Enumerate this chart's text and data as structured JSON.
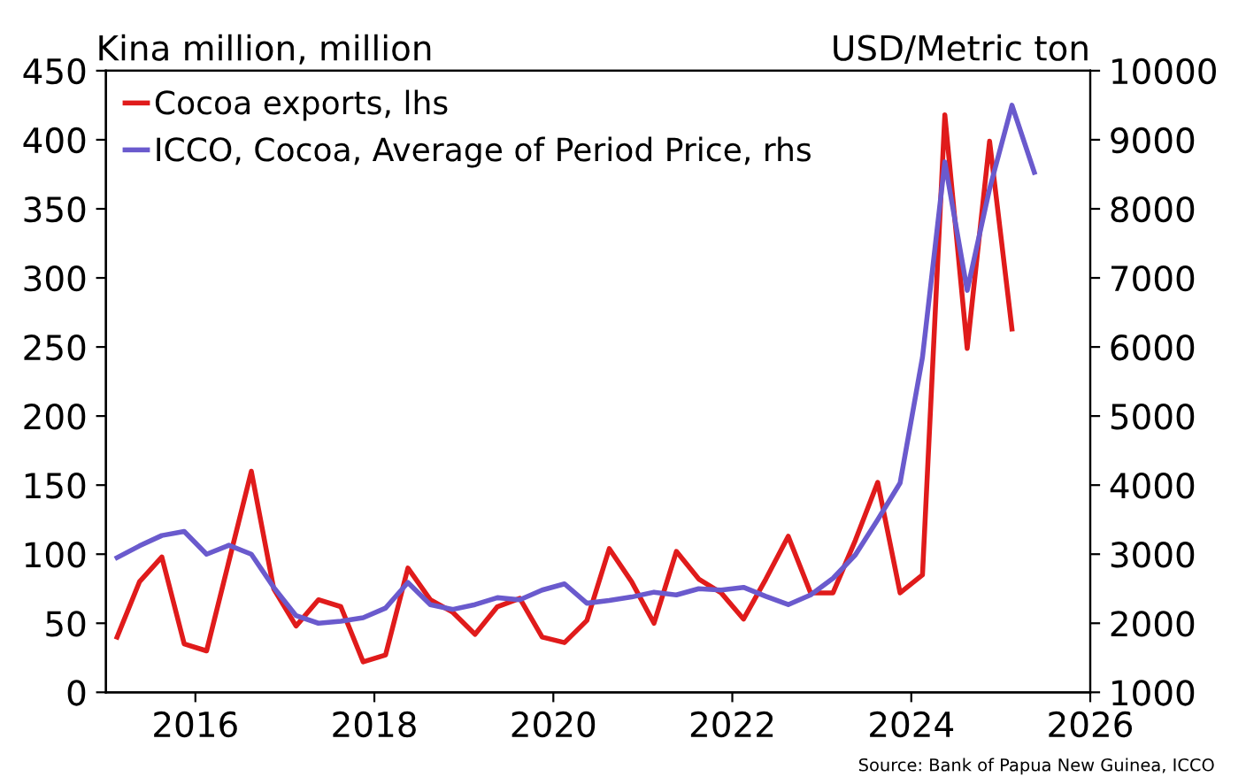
{
  "chart_data": {
    "type": "line",
    "ylabel": "Kina million, million",
    "y2label": "USD/Metric ton",
    "x": [
      2015.125,
      2015.375,
      2015.625,
      2015.875,
      2016.125,
      2016.375,
      2016.625,
      2016.875,
      2017.125,
      2017.375,
      2017.625,
      2017.875,
      2018.125,
      2018.375,
      2018.625,
      2018.875,
      2019.125,
      2019.375,
      2019.625,
      2019.875,
      2020.125,
      2020.375,
      2020.625,
      2020.875,
      2021.125,
      2021.375,
      2021.625,
      2021.875,
      2022.125,
      2022.375,
      2022.625,
      2022.875,
      2023.125,
      2023.375,
      2023.625,
      2023.875,
      2024.125,
      2024.375,
      2024.625,
      2024.875,
      2025.125,
      2025.375
    ],
    "series": [
      {
        "name": "Cocoa exports, lhs",
        "color": "#e01b1b",
        "axis": "y",
        "values": [
          40,
          80,
          98,
          35,
          30,
          95,
          160,
          75,
          48,
          67,
          62,
          22,
          27,
          90,
          67,
          58,
          42,
          62,
          68,
          40,
          36,
          52,
          104,
          80,
          50,
          102,
          82,
          72,
          53,
          82,
          113,
          72,
          72,
          110,
          152,
          72,
          85,
          418,
          249,
          399,
          263,
          null
        ]
      },
      {
        "name": "ICCO, Cocoa, Average of Period Price, rhs",
        "color": "#6a5acd",
        "axis": "y2",
        "values": [
          2950,
          3120,
          3270,
          3330,
          3000,
          3130,
          3000,
          2520,
          2110,
          2000,
          2030,
          2080,
          2220,
          2590,
          2270,
          2200,
          2270,
          2370,
          2340,
          2480,
          2570,
          2290,
          2330,
          2380,
          2450,
          2410,
          2500,
          2480,
          2520,
          2390,
          2270,
          2410,
          2650,
          2990,
          3500,
          4030,
          5850,
          8680,
          6820,
          8290,
          9500,
          8530
        ]
      }
    ],
    "xlim": [
      2015,
      2026
    ],
    "xticks": [
      2016,
      2018,
      2020,
      2022,
      2024,
      2026
    ],
    "ylim": [
      0,
      450
    ],
    "yticks": [
      0,
      50,
      100,
      150,
      200,
      250,
      300,
      350,
      400,
      450
    ],
    "y2lim": [
      1000,
      10000
    ],
    "y2ticks": [
      1000,
      2000,
      3000,
      4000,
      5000,
      6000,
      7000,
      8000,
      9000,
      10000
    ],
    "grid": false,
    "legend": "top left",
    "line_style": "solid",
    "annotations": [
      "Source: Bank of Papua New Guinea, ICCO"
    ]
  }
}
